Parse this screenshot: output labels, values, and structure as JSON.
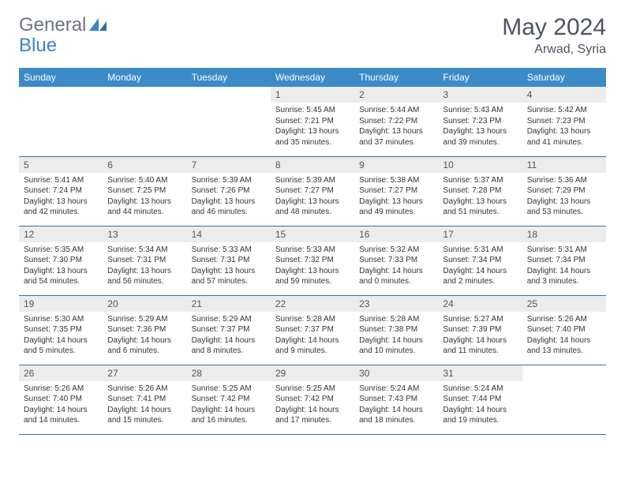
{
  "logo": {
    "text1": "General",
    "text2": "Blue"
  },
  "title": "May 2024",
  "location": "Arwad, Syria",
  "columns": [
    "Sunday",
    "Monday",
    "Tuesday",
    "Wednesday",
    "Thursday",
    "Friday",
    "Saturday"
  ],
  "colors": {
    "header_bg": "#3b8bc9",
    "header_text": "#ffffff",
    "daynum_bg": "#ececec",
    "border": "#3b6fa0",
    "logo_gray": "#6b7680",
    "logo_blue": "#3b82c7",
    "title_color": "#4a5560"
  },
  "weeks": [
    [
      null,
      null,
      null,
      {
        "n": "1",
        "sr": "5:45 AM",
        "ss": "7:21 PM",
        "dl": "13 hours and 35 minutes."
      },
      {
        "n": "2",
        "sr": "5:44 AM",
        "ss": "7:22 PM",
        "dl": "13 hours and 37 minutes."
      },
      {
        "n": "3",
        "sr": "5:43 AM",
        "ss": "7:23 PM",
        "dl": "13 hours and 39 minutes."
      },
      {
        "n": "4",
        "sr": "5:42 AM",
        "ss": "7:23 PM",
        "dl": "13 hours and 41 minutes."
      }
    ],
    [
      {
        "n": "5",
        "sr": "5:41 AM",
        "ss": "7:24 PM",
        "dl": "13 hours and 42 minutes."
      },
      {
        "n": "6",
        "sr": "5:40 AM",
        "ss": "7:25 PM",
        "dl": "13 hours and 44 minutes."
      },
      {
        "n": "7",
        "sr": "5:39 AM",
        "ss": "7:26 PM",
        "dl": "13 hours and 46 minutes."
      },
      {
        "n": "8",
        "sr": "5:39 AM",
        "ss": "7:27 PM",
        "dl": "13 hours and 48 minutes."
      },
      {
        "n": "9",
        "sr": "5:38 AM",
        "ss": "7:27 PM",
        "dl": "13 hours and 49 minutes."
      },
      {
        "n": "10",
        "sr": "5:37 AM",
        "ss": "7:28 PM",
        "dl": "13 hours and 51 minutes."
      },
      {
        "n": "11",
        "sr": "5:36 AM",
        "ss": "7:29 PM",
        "dl": "13 hours and 53 minutes."
      }
    ],
    [
      {
        "n": "12",
        "sr": "5:35 AM",
        "ss": "7:30 PM",
        "dl": "13 hours and 54 minutes."
      },
      {
        "n": "13",
        "sr": "5:34 AM",
        "ss": "7:31 PM",
        "dl": "13 hours and 56 minutes."
      },
      {
        "n": "14",
        "sr": "5:33 AM",
        "ss": "7:31 PM",
        "dl": "13 hours and 57 minutes."
      },
      {
        "n": "15",
        "sr": "5:33 AM",
        "ss": "7:32 PM",
        "dl": "13 hours and 59 minutes."
      },
      {
        "n": "16",
        "sr": "5:32 AM",
        "ss": "7:33 PM",
        "dl": "14 hours and 0 minutes."
      },
      {
        "n": "17",
        "sr": "5:31 AM",
        "ss": "7:34 PM",
        "dl": "14 hours and 2 minutes."
      },
      {
        "n": "18",
        "sr": "5:31 AM",
        "ss": "7:34 PM",
        "dl": "14 hours and 3 minutes."
      }
    ],
    [
      {
        "n": "19",
        "sr": "5:30 AM",
        "ss": "7:35 PM",
        "dl": "14 hours and 5 minutes."
      },
      {
        "n": "20",
        "sr": "5:29 AM",
        "ss": "7:36 PM",
        "dl": "14 hours and 6 minutes."
      },
      {
        "n": "21",
        "sr": "5:29 AM",
        "ss": "7:37 PM",
        "dl": "14 hours and 8 minutes."
      },
      {
        "n": "22",
        "sr": "5:28 AM",
        "ss": "7:37 PM",
        "dl": "14 hours and 9 minutes."
      },
      {
        "n": "23",
        "sr": "5:28 AM",
        "ss": "7:38 PM",
        "dl": "14 hours and 10 minutes."
      },
      {
        "n": "24",
        "sr": "5:27 AM",
        "ss": "7:39 PM",
        "dl": "14 hours and 11 minutes."
      },
      {
        "n": "25",
        "sr": "5:26 AM",
        "ss": "7:40 PM",
        "dl": "14 hours and 13 minutes."
      }
    ],
    [
      {
        "n": "26",
        "sr": "5:26 AM",
        "ss": "7:40 PM",
        "dl": "14 hours and 14 minutes."
      },
      {
        "n": "27",
        "sr": "5:26 AM",
        "ss": "7:41 PM",
        "dl": "14 hours and 15 minutes."
      },
      {
        "n": "28",
        "sr": "5:25 AM",
        "ss": "7:42 PM",
        "dl": "14 hours and 16 minutes."
      },
      {
        "n": "29",
        "sr": "5:25 AM",
        "ss": "7:42 PM",
        "dl": "14 hours and 17 minutes."
      },
      {
        "n": "30",
        "sr": "5:24 AM",
        "ss": "7:43 PM",
        "dl": "14 hours and 18 minutes."
      },
      {
        "n": "31",
        "sr": "5:24 AM",
        "ss": "7:44 PM",
        "dl": "14 hours and 19 minutes."
      },
      null
    ]
  ],
  "labels": {
    "sunrise": "Sunrise:",
    "sunset": "Sunset:",
    "daylight": "Daylight:"
  }
}
